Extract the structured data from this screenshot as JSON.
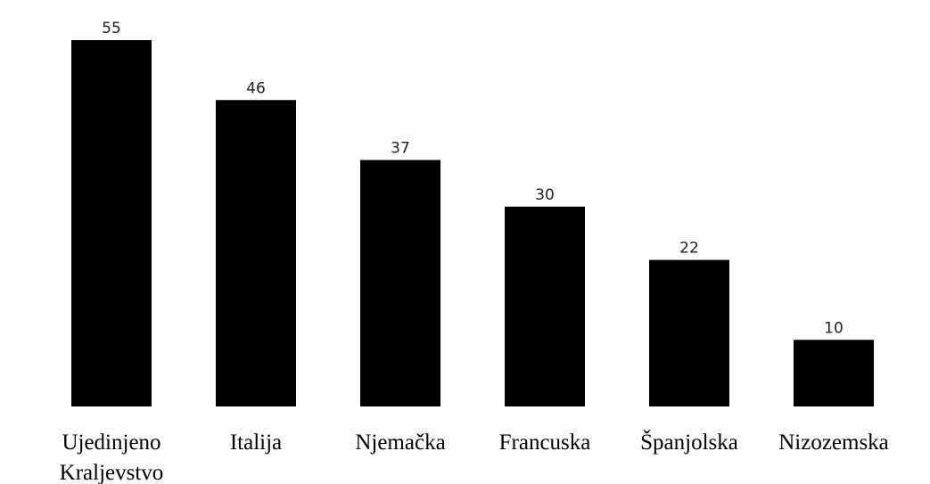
{
  "chart_data": {
    "type": "bar",
    "categories": [
      [
        "Ujedinjeno",
        "Kraljevstvo"
      ],
      [
        "Italija"
      ],
      [
        "Njemačka"
      ],
      [
        "Francuska"
      ],
      [
        "Španjolska"
      ],
      [
        "Nizozemska"
      ]
    ],
    "values": [
      55,
      46,
      37,
      30,
      22,
      10
    ],
    "value_labels": [
      "55",
      "46",
      "37",
      "30",
      "22",
      "10"
    ],
    "title": "",
    "xlabel": "",
    "ylabel": "",
    "ylim": [
      0,
      55
    ],
    "grid": false,
    "legend": "none",
    "colors": {
      "bar": "#000000",
      "background": "#fdfdfd",
      "value_text": "#222222",
      "category_text": "#000000"
    }
  }
}
